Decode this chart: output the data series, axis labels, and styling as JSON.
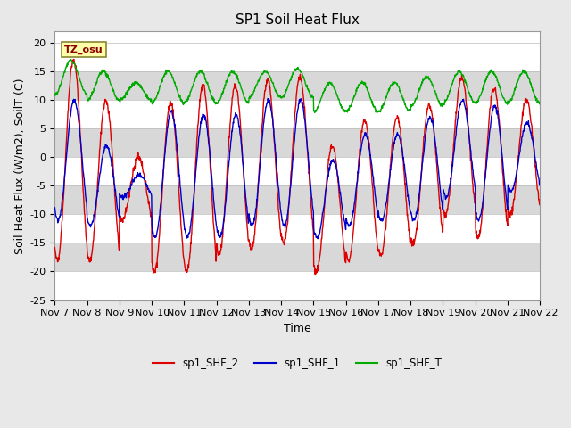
{
  "title": "SP1 Soil Heat Flux",
  "xlabel": "Time",
  "ylabel": "Soil Heat Flux (W/m2), SoilT (C)",
  "ylim": [
    -25,
    22
  ],
  "yticks": [
    -25,
    -20,
    -15,
    -10,
    -5,
    0,
    5,
    10,
    15,
    20
  ],
  "xtick_labels": [
    "Nov 7",
    "Nov 8",
    "Nov 9",
    "Nov 10",
    "Nov 11",
    "Nov 12",
    "Nov 13",
    "Nov 14",
    "Nov 15",
    "Nov 16",
    "Nov 17",
    "Nov 18",
    "Nov 19",
    "Nov 20",
    "Nov 21",
    "Nov 22"
  ],
  "legend_labels": [
    "sp1_SHF_2",
    "sp1_SHF_1",
    "sp1_SHF_T"
  ],
  "legend_colors": [
    "#dd0000",
    "#0000cc",
    "#00aa00"
  ],
  "tz_label": "TZ_osu",
  "bg_color": "#e8e8e8",
  "white_band_color": "#ffffff",
  "gray_band_color": "#d8d8d8",
  "title_fontsize": 11,
  "label_fontsize": 9,
  "tick_fontsize": 8
}
